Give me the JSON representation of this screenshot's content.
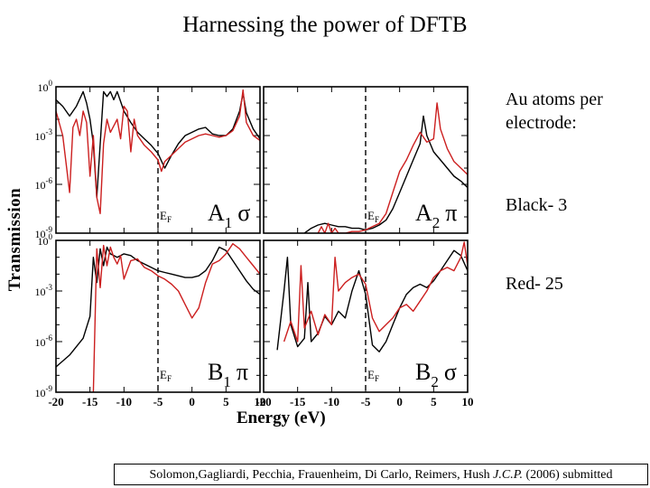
{
  "title": "Harnessing the power of DFTB",
  "ylabel": "Transmission",
  "xlabel": "Energy (eV)",
  "side_text": {
    "heading": "Au atoms per electrode:",
    "black": "Black- 3",
    "red": "Red- 25"
  },
  "citation": {
    "authors": "Solomon,Gagliardi, Pecchia, Frauenheim, Di Carlo, Reimers, Hush ",
    "journal": "J.C.P.",
    "rest": " (2006) submitted"
  },
  "colors": {
    "black_series": "#000000",
    "red_series": "#cc1f1f"
  },
  "chart_data": [
    {
      "type": "line",
      "panel": "A1",
      "label": "A",
      "sub": "1",
      "sym": "σ",
      "fermi": "E",
      "fermi_sub": "F",
      "xlim": [
        -20,
        10
      ],
      "ylim_exp": [
        -9,
        0
      ],
      "yscale": "log",
      "fermi_x": -5,
      "yticks": [
        "10^0",
        "10^-3",
        "10^-6",
        "10^-9"
      ],
      "series": [
        {
          "color": "black",
          "x": [
            -20,
            -19,
            -18,
            -17,
            -16,
            -15.5,
            -15,
            -14.5,
            -14,
            -13,
            -12.5,
            -12,
            -11.5,
            -11,
            -10,
            -9,
            -8,
            -7,
            -6,
            -5,
            -4,
            -3,
            -2,
            -1,
            0,
            1,
            2,
            3,
            4,
            5,
            6,
            7,
            7.5,
            8,
            9,
            10
          ],
          "y": [
            -0.8,
            -1.2,
            -1.8,
            -1.2,
            -0.3,
            -1.0,
            -2.0,
            -3.5,
            -6.8,
            -0.3,
            -0.6,
            -0.3,
            -0.8,
            -0.3,
            -1.5,
            -2.2,
            -2.8,
            -3.2,
            -3.6,
            -4.1,
            -5.0,
            -4.2,
            -3.5,
            -3.0,
            -2.8,
            -2.6,
            -2.5,
            -2.9,
            -3.0,
            -3.0,
            -2.6,
            -1.5,
            -0.4,
            -1.6,
            -2.6,
            -3.2
          ]
        },
        {
          "color": "red",
          "x": [
            -20,
            -19,
            -18,
            -17.5,
            -17,
            -16.5,
            -16,
            -15.5,
            -15,
            -14.5,
            -14,
            -13.5,
            -13,
            -12.5,
            -12,
            -11,
            -10.5,
            -10,
            -9.5,
            -9,
            -8.5,
            -8,
            -7,
            -6,
            -5,
            -4.5,
            -4,
            -3,
            -2,
            -1,
            0,
            1,
            2,
            3,
            4,
            5,
            6,
            7,
            7.5,
            8,
            9,
            10
          ],
          "y": [
            -1.5,
            -3.0,
            -6.5,
            -2.5,
            -2.0,
            -3.0,
            -1.5,
            -2.2,
            -5.5,
            -3.0,
            -6.8,
            -7.8,
            -3.5,
            -2.0,
            -2.8,
            -2.0,
            -3.2,
            -1.2,
            -1.5,
            -4.0,
            -2.0,
            -3.0,
            -3.6,
            -4.0,
            -4.5,
            -5.2,
            -4.6,
            -4.2,
            -3.8,
            -3.4,
            -3.2,
            -3.0,
            -2.9,
            -3.0,
            -3.1,
            -3.0,
            -2.7,
            -1.8,
            -0.2,
            -2.2,
            -3.0,
            -3.3
          ]
        }
      ]
    },
    {
      "type": "line",
      "panel": "A2",
      "label": "A",
      "sub": "2",
      "sym": "π",
      "fermi": "E",
      "fermi_sub": "F",
      "xlim": [
        -20,
        10
      ],
      "ylim_exp": [
        -9,
        0
      ],
      "yscale": "log",
      "fermi_x": -5,
      "series": [
        {
          "color": "black",
          "x": [
            -14,
            -13,
            -12,
            -11,
            -10,
            -9,
            -8,
            -7,
            -6,
            -5,
            -4,
            -3,
            -2,
            -1,
            0,
            1,
            2,
            3,
            3.5,
            4,
            5,
            6,
            7,
            8,
            9,
            10
          ],
          "y": [
            -9,
            -8.7,
            -8.5,
            -8.4,
            -8.5,
            -8.6,
            -8.6,
            -8.7,
            -8.7,
            -8.8,
            -8.7,
            -8.5,
            -8.2,
            -7.5,
            -6.5,
            -5.5,
            -4.5,
            -3.5,
            -1.8,
            -3.0,
            -4.0,
            -4.5,
            -5.0,
            -5.5,
            -5.8,
            -6.2
          ]
        },
        {
          "color": "red",
          "x": [
            -12,
            -11.5,
            -11,
            -10.5,
            -10,
            -9.5,
            -9,
            -8,
            -7,
            -6,
            -5,
            -4,
            -3,
            -2,
            -1,
            0,
            1,
            2,
            3,
            4,
            5,
            5.5,
            6,
            7,
            8,
            9,
            10
          ],
          "y": [
            -9,
            -8.6,
            -9,
            -8.4,
            -9,
            -8.7,
            -9,
            -9,
            -8.9,
            -8.9,
            -8.8,
            -8.6,
            -8.4,
            -7.8,
            -6.5,
            -5.2,
            -4.5,
            -3.6,
            -2.8,
            -3.4,
            -3.2,
            -1.0,
            -2.6,
            -3.8,
            -4.6,
            -5.0,
            -5.4
          ]
        }
      ]
    },
    {
      "type": "line",
      "panel": "B1",
      "label": "B",
      "sub": "1",
      "sym": "π",
      "fermi": "E",
      "fermi_sub": "F",
      "xlim": [
        -20,
        10
      ],
      "ylim_exp": [
        -9,
        0
      ],
      "yscale": "log",
      "fermi_x": -5,
      "xticks": [
        "-20",
        "-15",
        "-10",
        "-5",
        "0",
        "5",
        "10"
      ],
      "yticks": [
        "10^0",
        "10^-3",
        "10^-6",
        "10^-9"
      ],
      "series": [
        {
          "color": "black",
          "x": [
            -20,
            -18,
            -16,
            -15,
            -14.5,
            -14,
            -13.5,
            -13,
            -12.5,
            -12,
            -11,
            -10,
            -9,
            -8,
            -7,
            -6,
            -5,
            -4,
            -3,
            -2,
            -1,
            0,
            1,
            2,
            3,
            4,
            5,
            6,
            7,
            8,
            9,
            10
          ],
          "y": [
            -7.5,
            -6.8,
            -5.8,
            -4.5,
            -1.0,
            -2.5,
            -0.5,
            -1.5,
            -0.4,
            -0.8,
            -1.0,
            -0.8,
            -0.9,
            -1.2,
            -1.4,
            -1.6,
            -1.8,
            -1.9,
            -2.0,
            -2.1,
            -2.2,
            -2.2,
            -2.1,
            -1.8,
            -1.2,
            -0.4,
            -0.6,
            -1.2,
            -1.8,
            -2.4,
            -2.9,
            -3.2
          ]
        },
        {
          "color": "red",
          "x": [
            -14.5,
            -14,
            -13.5,
            -13,
            -12.5,
            -12,
            -11.5,
            -11,
            -10.5,
            -10,
            -9,
            -8,
            -7,
            -6,
            -5,
            -4,
            -3,
            -2,
            -1,
            0,
            1,
            2,
            3,
            4,
            5,
            6,
            7,
            8,
            9,
            10
          ],
          "y": [
            -9,
            -0.5,
            -2.8,
            -0.3,
            -1.5,
            -0.4,
            -1.0,
            -1.4,
            -0.9,
            -2.3,
            -1.2,
            -1.1,
            -1.6,
            -1.8,
            -2.1,
            -2.3,
            -2.6,
            -3.0,
            -3.8,
            -4.6,
            -4.0,
            -2.5,
            -1.4,
            -1.2,
            -0.8,
            -0.2,
            -0.5,
            -1.0,
            -1.5,
            -2.0
          ]
        }
      ]
    },
    {
      "type": "line",
      "panel": "B2",
      "label": "B",
      "sub": "2",
      "sym": "σ",
      "fermi": "E",
      "fermi_sub": "F",
      "xlim": [
        -20,
        10
      ],
      "ylim_exp": [
        -9,
        0
      ],
      "yscale": "log",
      "fermi_x": -5,
      "xticks": [
        "-20",
        "-15",
        "-10",
        "-5",
        "0",
        "5",
        "10"
      ],
      "series": [
        {
          "color": "black",
          "x": [
            -18,
            -17,
            -16.5,
            -16,
            -15,
            -14,
            -13.5,
            -13,
            -12,
            -11,
            -10,
            -9,
            -8,
            -7,
            -6,
            -5,
            -4,
            -3,
            -2,
            -1,
            0,
            1,
            2,
            3,
            4,
            5,
            6,
            7,
            8,
            9,
            10
          ],
          "y": [
            -6.5,
            -3.0,
            -1.0,
            -5.0,
            -6.3,
            -5.8,
            -2.5,
            -6.0,
            -5.5,
            -4.5,
            -5.0,
            -4.2,
            -4.6,
            -3.0,
            -1.8,
            -3.2,
            -6.2,
            -6.6,
            -6.0,
            -5.0,
            -4.0,
            -3.2,
            -2.8,
            -2.6,
            -2.8,
            -2.4,
            -1.8,
            -1.2,
            -0.6,
            -0.9,
            -1.8
          ]
        },
        {
          "color": "red",
          "x": [
            -17,
            -16,
            -15,
            -14.5,
            -14,
            -13,
            -12,
            -11,
            -10,
            -9.5,
            -9,
            -8,
            -7,
            -6,
            -5,
            -4,
            -3,
            -2,
            -1,
            0,
            1,
            2,
            3,
            4,
            5,
            6,
            7,
            8,
            9,
            9.5,
            10
          ],
          "y": [
            -6.0,
            -4.8,
            -6.0,
            -1.5,
            -5.2,
            -4.2,
            -5.6,
            -4.4,
            -5.0,
            -1.0,
            -3.0,
            -2.5,
            -2.2,
            -2.0,
            -2.6,
            -4.6,
            -5.4,
            -5.0,
            -4.6,
            -4.0,
            -3.8,
            -4.2,
            -3.6,
            -3.0,
            -2.2,
            -1.8,
            -1.6,
            -1.8,
            -1.0,
            -0.1,
            -1.5
          ]
        }
      ]
    }
  ]
}
